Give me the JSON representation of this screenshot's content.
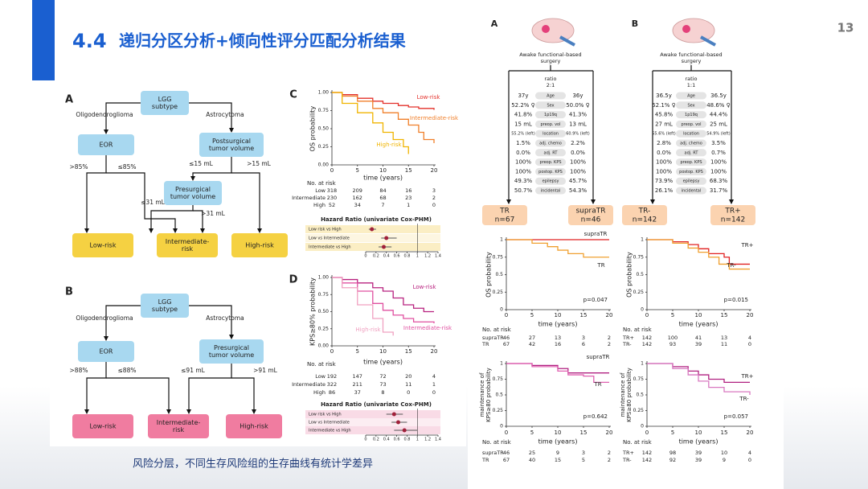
{
  "header": {
    "number": "4.4",
    "title": "递归分区分析+倾向性评分匹配分析结果",
    "page": "13"
  },
  "caption": "风险分层，不同生存风险组的生存曲线有统计学差异",
  "flow_a": {
    "label": "A",
    "nodes": [
      [
        "LGG",
        "subtype"
      ],
      [
        "EOR"
      ],
      [
        "Postsurgical",
        "tumor volume"
      ],
      [
        "Presurgical",
        "tumor volume"
      ],
      [
        "Low-risk"
      ],
      [
        "Intermediate-",
        "risk"
      ],
      [
        "High-risk"
      ]
    ],
    "edge_labels": [
      "Oligodendroglioma",
      "Astrocytoma",
      ">85%",
      "≤85%",
      "≤15 mL",
      ">15 mL",
      "≤31 mL",
      ">31 mL"
    ]
  },
  "flow_b": {
    "label": "B",
    "nodes": [
      [
        "LGG",
        "subtype"
      ],
      [
        "EOR"
      ],
      [
        "Presurgical",
        "tumor volume"
      ],
      [
        "Low-risk"
      ],
      [
        "Intermediate-",
        "risk"
      ],
      [
        "High-risk"
      ]
    ],
    "edge_labels": [
      "Oligodendroglioma",
      "Astrocytoma",
      ">88%",
      "≤88%",
      "≤91 mL",
      ">91 mL"
    ]
  },
  "km_c": {
    "label": "C",
    "ylabel": "OS probability",
    "xlabel": "time (years)",
    "xlim": [
      0,
      20
    ],
    "ylim": [
      0,
      1
    ],
    "xticks": [
      0,
      5,
      10,
      15,
      20
    ],
    "yticks": [
      {
        "value": 0,
        "label": "0.00"
      },
      {
        "value": 0.25,
        "label": "0.25"
      },
      {
        "value": 0.5,
        "label": "0.50"
      },
      {
        "value": 0.75,
        "label": "0.75"
      },
      {
        "value": 1,
        "label": "1.00"
      }
    ],
    "curves": [
      {
        "name": "Low-risk",
        "color": "#e3302a",
        "x": [
          0,
          2,
          5,
          8,
          10,
          13,
          15,
          17,
          20
        ],
        "y": [
          1,
          0.97,
          0.92,
          0.88,
          0.85,
          0.82,
          0.8,
          0.78,
          0.76
        ]
      },
      {
        "name": "Intermediate-risk",
        "color": "#f07f2a",
        "x": [
          0,
          2,
          5,
          8,
          10,
          13,
          15,
          17,
          18,
          20
        ],
        "y": [
          1,
          0.95,
          0.88,
          0.78,
          0.72,
          0.63,
          0.55,
          0.45,
          0.35,
          0.3
        ]
      },
      {
        "name": "High-risk",
        "color": "#f0b400",
        "x": [
          0,
          2,
          5,
          8,
          10,
          12,
          14,
          15
        ],
        "y": [
          1,
          0.85,
          0.72,
          0.58,
          0.45,
          0.35,
          0.25,
          0.15
        ]
      }
    ],
    "risk_title": "No. at risk",
    "risk_rows": [
      {
        "name": "Low",
        "counts": [
          318,
          209,
          84,
          16,
          3
        ]
      },
      {
        "name": "Intermediate",
        "counts": [
          230,
          162,
          68,
          23,
          2
        ]
      },
      {
        "name": "High",
        "counts": [
          52,
          34,
          7,
          1,
          0
        ]
      }
    ],
    "hr_title": "Hazard Ratio (univariate Cox-PHM)",
    "hr_xlim": [
      0,
      1.4
    ],
    "hr_ticks": [
      0,
      0.2,
      0.4,
      0.6,
      0.8,
      1,
      1.2,
      1.4
    ],
    "hr_rows": [
      {
        "name": "Low risk vs High",
        "hr": 0.12,
        "ci": [
          0.06,
          0.2
        ]
      },
      {
        "name": "Low vs Intermediate",
        "hr": 0.4,
        "ci": [
          0.3,
          0.6
        ]
      },
      {
        "name": "Intermediate vs High",
        "hr": 0.35,
        "ci": [
          0.25,
          0.5
        ]
      }
    ]
  },
  "km_d": {
    "label": "D",
    "ylabel": "KPS≥80% probability",
    "xlabel": "time (years)",
    "xlim": [
      0,
      20
    ],
    "ylim": [
      0,
      1
    ],
    "xticks": [
      0,
      5,
      10,
      15,
      20
    ],
    "yticks": [
      {
        "value": 0,
        "label": "0.00"
      },
      {
        "value": 0.25,
        "label": "0.25"
      },
      {
        "value": 0.5,
        "label": "0.50"
      },
      {
        "value": 0.75,
        "label": "0.75"
      },
      {
        "value": 1,
        "label": "1.00"
      }
    ],
    "curves": [
      {
        "name": "Low-risk",
        "color": "#b8227f",
        "x": [
          0,
          2,
          5,
          8,
          10,
          12,
          14,
          16,
          18,
          20
        ],
        "y": [
          1,
          0.97,
          0.92,
          0.85,
          0.8,
          0.7,
          0.6,
          0.55,
          0.5,
          0.5
        ]
      },
      {
        "name": "Intermediate-risk",
        "color": "#e050a0",
        "x": [
          0,
          2,
          5,
          8,
          10,
          12,
          14,
          16,
          20
        ],
        "y": [
          1,
          0.92,
          0.8,
          0.62,
          0.52,
          0.45,
          0.4,
          0.35,
          0.33
        ]
      },
      {
        "name": "High-risk",
        "color": "#f0a0c0",
        "x": [
          0,
          2,
          5,
          8,
          10,
          12
        ],
        "y": [
          1,
          0.85,
          0.6,
          0.4,
          0.2,
          0.15
        ]
      }
    ],
    "risk_title": "No. at risk",
    "risk_rows": [
      {
        "name": "Low",
        "counts": [
          192,
          147,
          72,
          20,
          4
        ]
      },
      {
        "name": "Intermediate",
        "counts": [
          322,
          211,
          73,
          11,
          1
        ]
      },
      {
        "name": "High",
        "counts": [
          86,
          37,
          8,
          0,
          0
        ]
      }
    ],
    "hr_title": "Hazard Ratio (univariate Cox-PHM)",
    "hr_xlim": [
      0,
      1.4
    ],
    "hr_ticks": [
      0,
      0.2,
      0.4,
      0.6,
      0.8,
      1,
      1.2,
      1.4
    ],
    "hr_rows": [
      {
        "name": "Low risk vs High",
        "hr": 0.55,
        "ci": [
          0.4,
          0.72
        ]
      },
      {
        "name": "Low vs Intermediate",
        "hr": 0.63,
        "ci": [
          0.5,
          0.8
        ]
      },
      {
        "name": "Intermediate vs High",
        "hr": 0.75,
        "ci": [
          0.55,
          1.0
        ]
      }
    ]
  },
  "match_a": {
    "label": "A",
    "surgery": [
      "Awake functional-based",
      "surgery"
    ],
    "ratio_label": "ratio",
    "ratio": "2:1",
    "rows": [
      [
        "37y",
        "Age",
        "36y"
      ],
      [
        "52.2% ♀",
        "Sex",
        "50.0% ♀"
      ],
      [
        "41.8%",
        "1p19q",
        "41.3%"
      ],
      [
        "15 mL",
        "preop. vol",
        "13 mL"
      ],
      [
        "55.2% (left)",
        "location",
        "60.9% (left)"
      ],
      [
        "1.5%",
        "adj. chemo",
        "2.2%"
      ],
      [
        "0.0%",
        "adj. RT",
        "0.0%"
      ],
      [
        "100%",
        "preop. KPS",
        "100%"
      ],
      [
        "100%",
        "postop. KPS",
        "100%"
      ],
      [
        "49.3%",
        "epilepsy",
        "45.7%"
      ],
      [
        "50.7%",
        "incidental",
        "54.3%"
      ]
    ],
    "groups": [
      {
        "name": "TR",
        "n": "n=67"
      },
      {
        "name": "supraTR",
        "n": "n=46"
      }
    ]
  },
  "match_b": {
    "label": "B",
    "surgery": [
      "Awake functional-based",
      "surgery"
    ],
    "ratio_label": "ratio",
    "ratio": "1:1",
    "rows": [
      [
        "36.5y",
        "Age",
        "36.5y"
      ],
      [
        "52.1% ♀",
        "Sex",
        "48.6% ♀"
      ],
      [
        "45.8%",
        "1p19q",
        "44.4%"
      ],
      [
        "27 mL",
        "preop. vol",
        "25 mL"
      ],
      [
        "55.6% (left)",
        "location",
        "54.9% (left)"
      ],
      [
        "2.8%",
        "adj. chemo",
        "3.5%"
      ],
      [
        "0.0%",
        "adj. RT",
        "0.7%"
      ],
      [
        "100%",
        "preop. KPS",
        "100%"
      ],
      [
        "100%",
        "postop. KPS",
        "100%"
      ],
      [
        "73.9%",
        "epilepsy",
        "68.3%"
      ],
      [
        "26.1%",
        "incidental",
        "31.7%"
      ]
    ],
    "groups": [
      {
        "name": "TR-",
        "n": "n=142"
      },
      {
        "name": "TR+",
        "n": "n=142"
      }
    ]
  },
  "os_a": {
    "ylabel": "OS probability",
    "xlabel": "time (years)",
    "xlim": [
      0,
      20
    ],
    "ylim": [
      0,
      1
    ],
    "xticks": [
      0,
      5,
      10,
      15,
      20
    ],
    "yticks": [
      0,
      0.25,
      0.5,
      0.75,
      1
    ],
    "curves": [
      {
        "name": "supraTR",
        "color": "#e02020",
        "x": [
          0,
          20
        ],
        "y": [
          1,
          1
        ]
      },
      {
        "name": "TR",
        "color": "#f0a030",
        "x": [
          0,
          5,
          8,
          10,
          12,
          15,
          20
        ],
        "y": [
          1,
          0.95,
          0.9,
          0.85,
          0.8,
          0.75,
          0.75
        ]
      }
    ],
    "p": "p=0.047",
    "risk_title": "No. at risk",
    "risk_rows": [
      {
        "name": "supraTR",
        "counts": [
          46,
          27,
          13,
          3,
          2
        ]
      },
      {
        "name": "TR",
        "counts": [
          67,
          42,
          16,
          6,
          2
        ]
      }
    ]
  },
  "kps_a": {
    "ylabel": [
      "maintenance of",
      "KPS≥80 probability"
    ],
    "xlabel": "time (years)",
    "xlim": [
      0,
      20
    ],
    "ylim": [
      0,
      1
    ],
    "xticks": [
      0,
      5,
      10,
      15,
      20
    ],
    "yticks": [
      0,
      0.25,
      0.5,
      0.75,
      1
    ],
    "curves": [
      {
        "name": "supraTR",
        "color": "#b02080",
        "x": [
          0,
          5,
          10,
          12,
          15,
          20
        ],
        "y": [
          1,
          0.97,
          0.92,
          0.85,
          0.85,
          0.85
        ]
      },
      {
        "name": "TR",
        "color": "#e060b0",
        "x": [
          0,
          5,
          10,
          12,
          15,
          17,
          20
        ],
        "y": [
          1,
          0.95,
          0.88,
          0.82,
          0.8,
          0.7,
          0.7
        ]
      }
    ],
    "p": "p=0.642",
    "risk_title": "No. at risk",
    "risk_rows": [
      {
        "name": "supraTR",
        "counts": [
          46,
          25,
          9,
          3,
          2
        ]
      },
      {
        "name": "TR",
        "counts": [
          67,
          40,
          15,
          5,
          2
        ]
      }
    ]
  },
  "os_b": {
    "ylabel": "OS probability",
    "xlabel": "time (years)",
    "xlim": [
      0,
      20
    ],
    "ylim": [
      0,
      1
    ],
    "xticks": [
      0,
      5,
      10,
      15,
      20
    ],
    "yticks": [
      0,
      0.25,
      0.5,
      0.75,
      1
    ],
    "curves": [
      {
        "name": "TR+",
        "color": "#e02020",
        "x": [
          0,
          5,
          8,
          10,
          12,
          15,
          16,
          20
        ],
        "y": [
          1,
          0.97,
          0.93,
          0.87,
          0.8,
          0.75,
          0.65,
          0.65
        ]
      },
      {
        "name": "TR-",
        "color": "#f0a030",
        "x": [
          0,
          5,
          8,
          10,
          12,
          14,
          16,
          20
        ],
        "y": [
          1,
          0.95,
          0.88,
          0.82,
          0.75,
          0.65,
          0.58,
          0.58
        ]
      }
    ],
    "p": "p=0.015",
    "risk_title": "No. at risk",
    "risk_rows": [
      {
        "name": "TR+",
        "counts": [
          142,
          100,
          41,
          13,
          4
        ]
      },
      {
        "name": "TR-",
        "counts": [
          142,
          93,
          39,
          11,
          0
        ]
      }
    ]
  },
  "kps_b": {
    "ylabel": [
      "maintenance of",
      "KPS≥80 probability"
    ],
    "xlabel": "time (years)",
    "xlim": [
      0,
      20
    ],
    "ylim": [
      0,
      1
    ],
    "xticks": [
      0,
      5,
      10,
      15,
      20
    ],
    "yticks": [
      0,
      0.25,
      0.5,
      0.75,
      1
    ],
    "curves": [
      {
        "name": "TR+",
        "color": "#b02080",
        "x": [
          0,
          5,
          8,
          10,
          12,
          15,
          20
        ],
        "y": [
          1,
          0.95,
          0.88,
          0.82,
          0.75,
          0.7,
          0.7
        ]
      },
      {
        "name": "TR-",
        "color": "#d878c0",
        "x": [
          0,
          5,
          8,
          10,
          12,
          15,
          20
        ],
        "y": [
          1,
          0.92,
          0.82,
          0.72,
          0.62,
          0.55,
          0.5
        ]
      }
    ],
    "p": "p=0.057",
    "risk_title": "No. at risk",
    "risk_rows": [
      {
        "name": "TR+",
        "counts": [
          142,
          98,
          39,
          10,
          4
        ]
      },
      {
        "name": "TR-",
        "counts": [
          142,
          92,
          39,
          9,
          0
        ]
      }
    ]
  }
}
